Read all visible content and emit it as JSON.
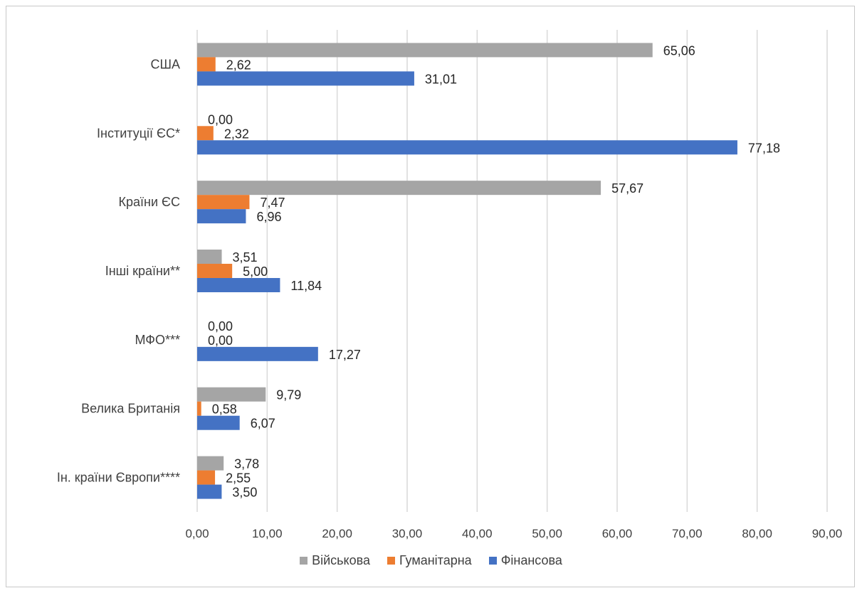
{
  "chart_data": {
    "type": "bar",
    "orientation": "horizontal",
    "categories": [
      "США",
      "Інституції ЄС*",
      "Країни ЄС",
      "Інші країни**",
      "МФО***",
      "Велика Британія",
      "Ін. країни Європи****"
    ],
    "series": [
      {
        "name": "Військова",
        "color": "#a5a5a5",
        "values": [
          65.06,
          0.0,
          57.67,
          3.51,
          0.0,
          9.79,
          3.78
        ],
        "labels": [
          "65,06",
          "0,00",
          "57,67",
          "3,51",
          "0,00",
          "9,79",
          "3,78"
        ]
      },
      {
        "name": "Гуманітарна",
        "color": "#ed7d31",
        "values": [
          2.62,
          2.32,
          7.47,
          5.0,
          0.0,
          0.58,
          2.55
        ],
        "labels": [
          "2,62",
          "2,32",
          "7,47",
          "5,00",
          "0,00",
          "0,58",
          "2,55"
        ]
      },
      {
        "name": "Фінансова",
        "color": "#4472c4",
        "values": [
          31.01,
          77.18,
          6.96,
          11.84,
          17.27,
          6.07,
          3.5
        ],
        "labels": [
          "31,01",
          "77,18",
          "6,96",
          "11,84",
          "17,27",
          "6,07",
          "3,50"
        ]
      }
    ],
    "xlim": [
      0,
      90
    ],
    "x_ticks": [
      0,
      10,
      20,
      30,
      40,
      50,
      60,
      70,
      80,
      90
    ],
    "x_tick_labels": [
      "0,00",
      "10,00",
      "20,00",
      "30,00",
      "40,00",
      "50,00",
      "60,00",
      "70,00",
      "80,00",
      "90,00"
    ],
    "grid": true,
    "legend_position": "bottom",
    "title": "",
    "xlabel": "",
    "ylabel": ""
  }
}
